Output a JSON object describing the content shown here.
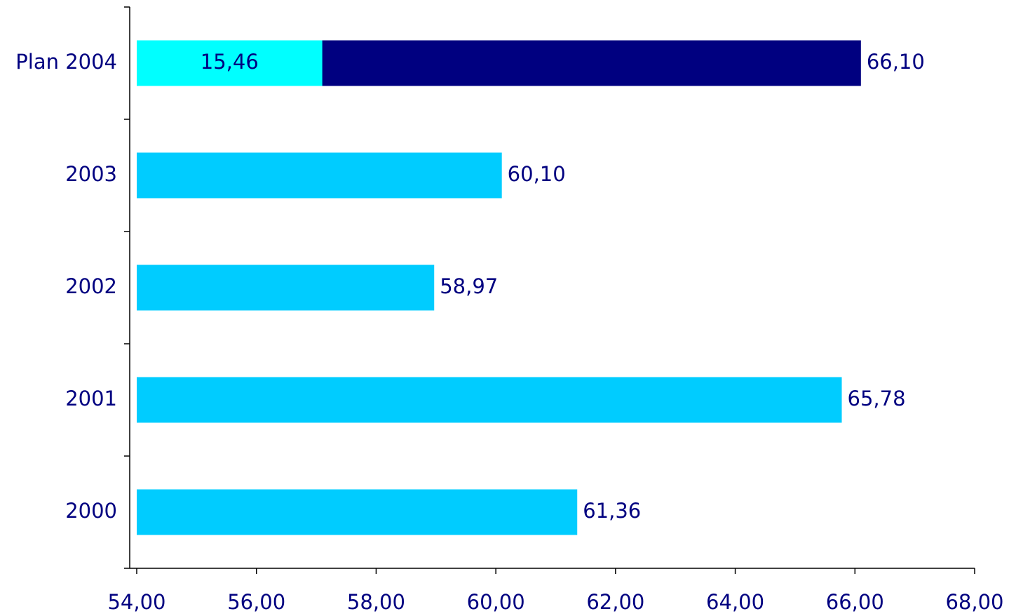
{
  "chart_data": {
    "type": "hbar",
    "categories": [
      "Plan 2004",
      "2003",
      "2002",
      "2001",
      "2000"
    ],
    "series": [
      {
        "colors": [
          "#000080",
          "#00ccff",
          "#00ccff",
          "#00ccff",
          "#00ccff"
        ],
        "values": [
          66.1,
          60.1,
          58.97,
          65.78,
          61.36
        ],
        "value_labels": [
          "66,10",
          "60,10",
          "58,97",
          "65,78",
          "61,36"
        ]
      },
      {
        "color": "#00ffff",
        "values": [
          57.1,
          null,
          null,
          null,
          null
        ]
      }
    ],
    "annotations": [
      "15,46"
    ],
    "xlim": [
      54,
      68
    ],
    "xticks": [
      {
        "value": 54,
        "label": "54,00"
      },
      {
        "value": 56,
        "label": "56,00"
      },
      {
        "value": 58,
        "label": "58,00"
      },
      {
        "value": 60,
        "label": "60,00"
      },
      {
        "value": 62,
        "label": "62,00"
      },
      {
        "value": 64,
        "label": "64,00"
      },
      {
        "value": 66,
        "label": "66,00"
      },
      {
        "value": 68,
        "label": "68,00"
      }
    ]
  }
}
